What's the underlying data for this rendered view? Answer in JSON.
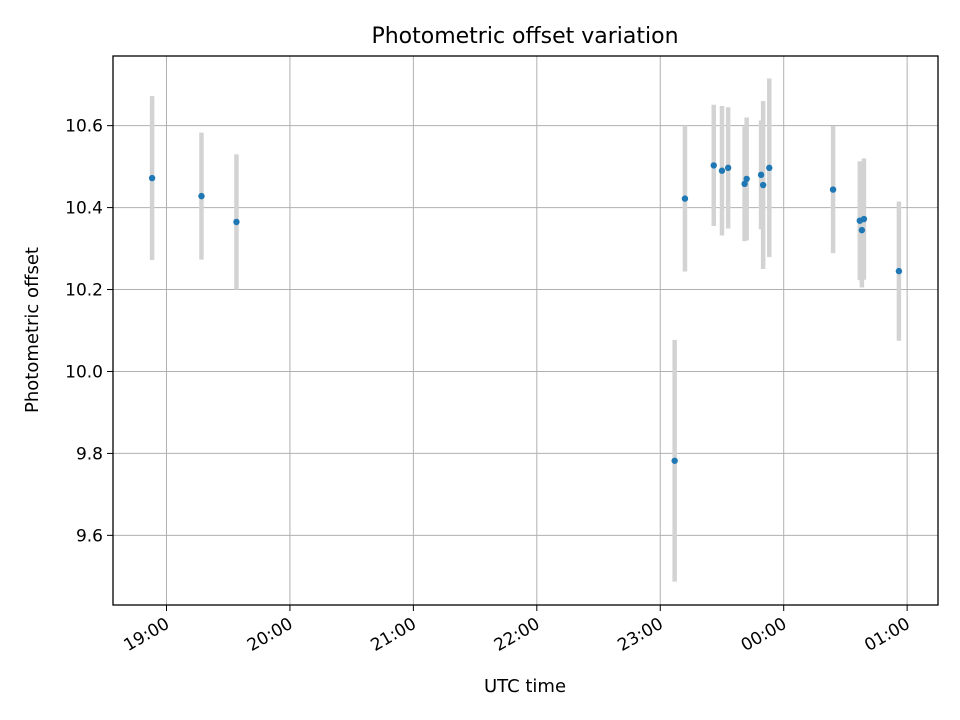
{
  "chart_data": {
    "type": "scatter",
    "title": "Photometric offset variation",
    "xlabel": "UTC time",
    "ylabel": "Photometric offset",
    "x_tick_labels": [
      "19:00",
      "20:00",
      "21:00",
      "22:00",
      "23:00",
      "00:00",
      "01:00"
    ],
    "y_tick_labels": [
      "9.6",
      "9.8",
      "10.0",
      "10.2",
      "10.4",
      "10.6"
    ],
    "x_ticks": [
      "19:00",
      "20:00",
      "21:00",
      "22:00",
      "23:00",
      "24:00",
      "25:00"
    ],
    "y_ticks": [
      9.6,
      9.8,
      10.0,
      10.2,
      10.4,
      10.6
    ],
    "xlim": [
      "18:34",
      "25:15"
    ],
    "ylim": [
      9.43,
      10.77
    ],
    "grid": true,
    "point_color": "#1f77b4",
    "errorbar_color": "#d3d3d3",
    "series": [
      {
        "points": [
          {
            "x": "18:53",
            "y": 10.472,
            "err": 0.2
          },
          {
            "x": "19:17",
            "y": 10.428,
            "err": 0.155
          },
          {
            "x": "19:34",
            "y": 10.365,
            "err": 0.165
          },
          {
            "x": "23:07",
            "y": 9.782,
            "err": 0.295
          },
          {
            "x": "23:12",
            "y": 10.422,
            "err": 0.178
          },
          {
            "x": "23:26",
            "y": 10.503,
            "err": 0.148
          },
          {
            "x": "23:30",
            "y": 10.49,
            "err": 0.158
          },
          {
            "x": "23:33",
            "y": 10.497,
            "err": 0.148
          },
          {
            "x": "23:41",
            "y": 10.458,
            "err": 0.14
          },
          {
            "x": "23:42",
            "y": 10.47,
            "err": 0.15
          },
          {
            "x": "23:49",
            "y": 10.48,
            "err": 0.133
          },
          {
            "x": "23:50",
            "y": 10.455,
            "err": 0.205
          },
          {
            "x": "23:53",
            "y": 10.497,
            "err": 0.218
          },
          {
            "x": "24:24",
            "y": 10.444,
            "err": 0.155
          },
          {
            "x": "24:37",
            "y": 10.368,
            "err": 0.145
          },
          {
            "x": "24:38",
            "y": 10.345,
            "err": 0.14
          },
          {
            "x": "24:39",
            "y": 10.372,
            "err": 0.148
          },
          {
            "x": "24:56",
            "y": 10.245,
            "err": 0.17
          }
        ]
      }
    ]
  }
}
